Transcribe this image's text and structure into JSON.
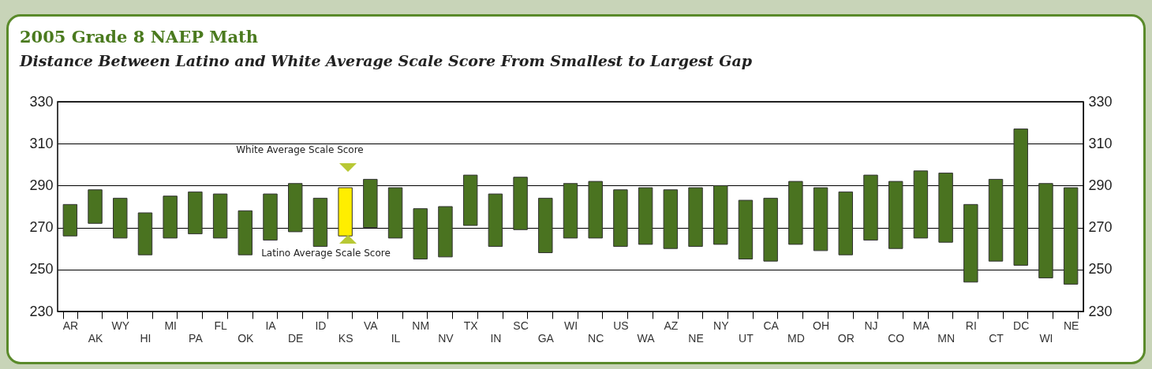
{
  "chart_data": {
    "type": "bar",
    "title": "2005 Grade 8 NAEP Math",
    "subtitle": "Distance Between Latino and White Average Scale Score From Smallest to Largest Gap",
    "categories": [
      "AR",
      "AK",
      "WY",
      "HI",
      "MI",
      "PA",
      "FL",
      "OK",
      "IA",
      "DE",
      "ID",
      "KS",
      "VA",
      "IL",
      "NM",
      "NV",
      "TX",
      "IN",
      "SC",
      "GA",
      "WI",
      "NC",
      "US",
      "WA",
      "AZ",
      "NE",
      "NY",
      "UT",
      "CA",
      "MD",
      "OH",
      "OR",
      "NJ",
      "CO",
      "MA",
      "MN",
      "RI",
      "CT",
      "DC",
      "WI",
      "NE"
    ],
    "base": [
      266,
      272,
      265,
      257,
      265,
      267,
      265,
      257,
      264,
      268,
      261,
      266,
      270,
      265,
      255,
      256,
      271,
      261,
      269,
      258,
      265,
      265,
      261,
      262,
      260,
      261,
      262,
      255,
      254,
      262,
      259,
      257,
      264,
      260,
      265,
      263,
      244,
      254,
      252,
      246,
      243
    ],
    "values": [
      15,
      16,
      19,
      20,
      20,
      20,
      21,
      21,
      22,
      23,
      23,
      23,
      23,
      24,
      24,
      24,
      24,
      25,
      25,
      26,
      26,
      27,
      27,
      27,
      28,
      28,
      28,
      28,
      30,
      30,
      30,
      30,
      31,
      32,
      32,
      33,
      37,
      39,
      65,
      45,
      46
    ],
    "colors": [
      "#4a7320",
      "#4a7320",
      "#4a7320",
      "#4a7320",
      "#4a7320",
      "#4a7320",
      "#4a7320",
      "#4a7320",
      "#4a7320",
      "#4a7320",
      "#4a7320",
      "#ffee00",
      "#4a7320",
      "#4a7320",
      "#4a7320",
      "#4a7320",
      "#4a7320",
      "#4a7320",
      "#4a7320",
      "#4a7320",
      "#4a7320",
      "#4a7320",
      "#4a7320",
      "#4a7320",
      "#4a7320",
      "#4a7320",
      "#4a7320",
      "#4a7320",
      "#4a7320",
      "#4a7320",
      "#4a7320",
      "#4a7320",
      "#4a7320",
      "#4a7320",
      "#4a7320",
      "#4a7320",
      "#4a7320",
      "#4a7320",
      "#4a7320",
      "#4a7320",
      "#4a7320"
    ],
    "ylim": [
      230,
      330
    ],
    "yticks": [
      230,
      250,
      270,
      290,
      310,
      330
    ],
    "y2lim": [
      230,
      330
    ],
    "y2ticks": [
      230,
      250,
      270,
      290,
      310,
      330
    ],
    "grid": "y",
    "annotations": [
      "White Average Scale Score",
      "Latino Average Scale Score"
    ]
  }
}
